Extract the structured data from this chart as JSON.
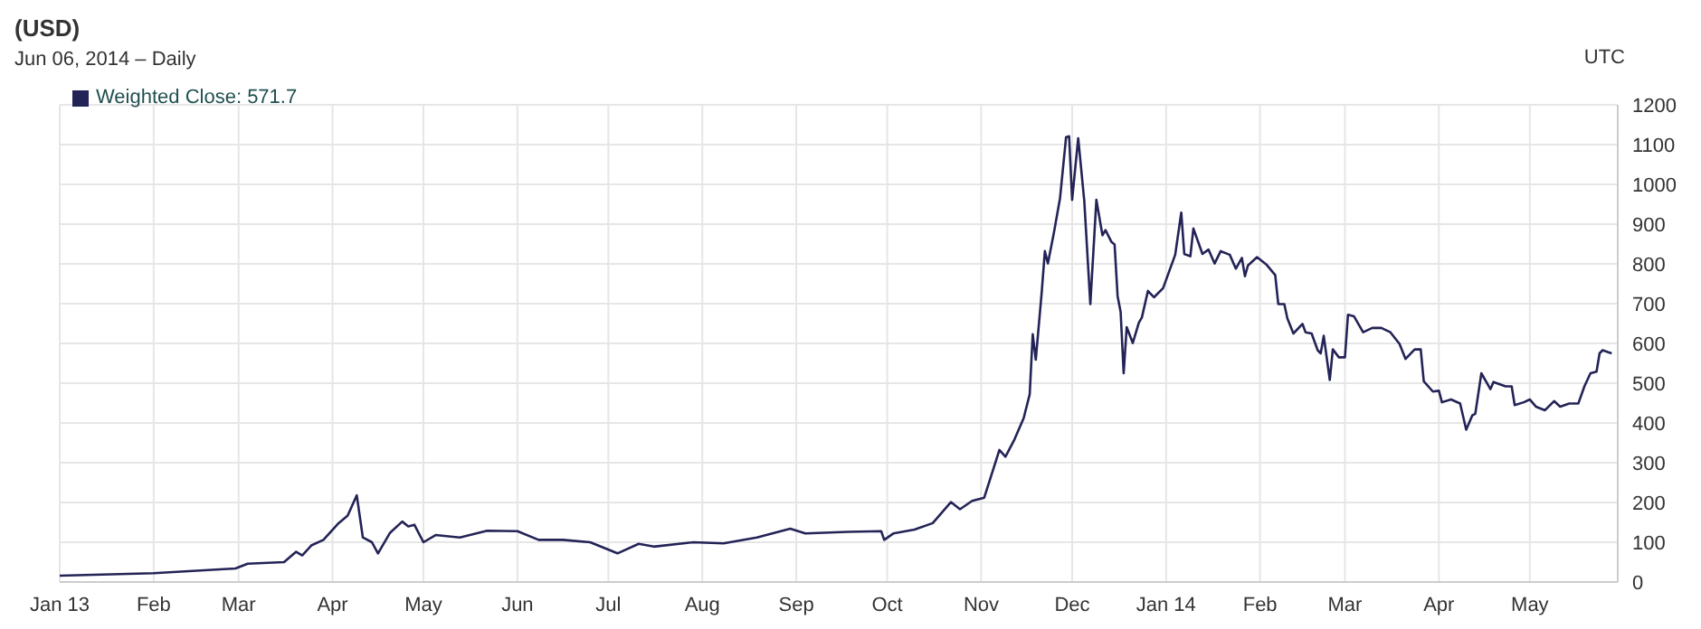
{
  "chart_data": {
    "type": "line",
    "title": "(USD)",
    "subtitle": "Jun 06, 2014 – Daily",
    "annotations": [
      "UTC"
    ],
    "x": [
      "2013-01-01",
      "2013-02-01",
      "2013-02-28",
      "2013-03-04",
      "2013-03-16",
      "2013-03-20",
      "2013-03-22",
      "2013-03-25",
      "2013-03-29",
      "2013-04-03",
      "2013-04-06",
      "2013-04-09",
      "2013-04-11",
      "2013-04-14",
      "2013-04-16",
      "2013-04-20",
      "2013-04-24",
      "2013-04-26",
      "2013-04-28",
      "2013-05-01",
      "2013-05-05",
      "2013-05-13",
      "2013-05-22",
      "2013-06-01",
      "2013-06-08",
      "2013-06-16",
      "2013-06-25",
      "2013-07-04",
      "2013-07-11",
      "2013-07-16",
      "2013-07-29",
      "2013-08-08",
      "2013-08-19",
      "2013-08-30",
      "2013-09-04",
      "2013-09-18",
      "2013-09-29",
      "2013-09-30",
      "2013-10-03",
      "2013-10-10",
      "2013-10-16",
      "2013-10-22",
      "2013-10-25",
      "2013-10-29",
      "2013-11-02",
      "2013-11-07",
      "2013-11-09",
      "2013-11-12",
      "2013-11-15",
      "2013-11-17",
      "2013-11-18",
      "2013-11-19",
      "2013-11-21",
      "2013-11-22",
      "2013-11-23",
      "2013-11-25",
      "2013-11-27",
      "2013-11-29",
      "2013-11-30",
      "2013-12-01",
      "2013-12-02",
      "2013-12-03",
      "2013-12-05",
      "2013-12-07",
      "2013-12-09",
      "2013-12-11",
      "2013-12-12",
      "2013-12-14",
      "2013-12-15",
      "2013-12-16",
      "2013-12-17",
      "2013-12-18",
      "2013-12-19",
      "2013-12-21",
      "2013-12-23",
      "2013-12-24",
      "2013-12-26",
      "2013-12-28",
      "2013-12-31",
      "2014-01-04",
      "2014-01-06",
      "2014-01-07",
      "2014-01-09",
      "2014-01-10",
      "2014-01-13",
      "2014-01-15",
      "2014-01-17",
      "2014-01-19",
      "2014-01-22",
      "2014-01-24",
      "2014-01-26",
      "2014-01-27",
      "2014-01-28",
      "2014-01-31",
      "2014-02-03",
      "2014-02-06",
      "2014-02-07",
      "2014-02-09",
      "2014-02-10",
      "2014-02-12",
      "2014-02-15",
      "2014-02-16",
      "2014-02-18",
      "2014-02-20",
      "2014-02-21",
      "2014-02-22",
      "2014-02-24",
      "2014-02-25",
      "2014-02-27",
      "2014-03-01",
      "2014-03-02",
      "2014-03-04",
      "2014-03-07",
      "2014-03-10",
      "2014-03-13",
      "2014-03-16",
      "2014-03-19",
      "2014-03-21",
      "2014-03-24",
      "2014-03-26",
      "2014-03-27",
      "2014-03-30",
      "2014-04-01",
      "2014-04-02",
      "2014-04-05",
      "2014-04-08",
      "2014-04-10",
      "2014-04-12",
      "2014-04-13",
      "2014-04-15",
      "2014-04-18",
      "2014-04-19",
      "2014-04-23",
      "2014-04-25",
      "2014-04-26",
      "2014-04-29",
      "2014-05-01",
      "2014-05-03",
      "2014-05-06",
      "2014-05-09",
      "2014-05-11",
      "2014-05-14",
      "2014-05-17",
      "2014-05-19",
      "2014-05-21",
      "2014-05-23",
      "2014-05-24",
      "2014-05-25",
      "2014-05-28"
    ],
    "series": [
      {
        "name": "Weighted Close: 571.7",
        "color": "#232357",
        "values": [
          16,
          22,
          34,
          46,
          50,
          76,
          67,
          92,
          106,
          148,
          167,
          218,
          112,
          100,
          72,
          124,
          152,
          140,
          144,
          100,
          118,
          112,
          129,
          128,
          106,
          106,
          100,
          72,
          96,
          89,
          100,
          97,
          112,
          134,
          122,
          126,
          128,
          106,
          122,
          132,
          148,
          201,
          183,
          204,
          212,
          332,
          315,
          359,
          412,
          472,
          623,
          559,
          732,
          832,
          801,
          879,
          965,
          1119,
          1121,
          961,
          1039,
          1116,
          959,
          699,
          961,
          872,
          885,
          855,
          849,
          719,
          679,
          525,
          641,
          601,
          652,
          665,
          732,
          716,
          739,
          823,
          929,
          825,
          819,
          889,
          825,
          836,
          801,
          832,
          823,
          788,
          815,
          769,
          796,
          817,
          799,
          772,
          699,
          699,
          663,
          625,
          649,
          628,
          625,
          583,
          575,
          619,
          508,
          585,
          565,
          565,
          672,
          668,
          628,
          639,
          639,
          628,
          599,
          561,
          585,
          585,
          505,
          479,
          481,
          452,
          459,
          449,
          383,
          419,
          423,
          525,
          485,
          503,
          492,
          492,
          445,
          452,
          459,
          441,
          432,
          455,
          441,
          449,
          449,
          492,
          525,
          529,
          575,
          583,
          575
        ]
      }
    ],
    "xlim": [
      "2013-01-01",
      "2014-05-30"
    ],
    "xticks": [
      {
        "value": "2013-01-01",
        "label": "Jan 13"
      },
      {
        "value": "2013-02-01",
        "label": "Feb"
      },
      {
        "value": "2013-03-01",
        "label": "Mar"
      },
      {
        "value": "2013-04-01",
        "label": "Apr"
      },
      {
        "value": "2013-05-01",
        "label": "May"
      },
      {
        "value": "2013-06-01",
        "label": "Jun"
      },
      {
        "value": "2013-07-01",
        "label": "Jul"
      },
      {
        "value": "2013-08-01",
        "label": "Aug"
      },
      {
        "value": "2013-09-01",
        "label": "Sep"
      },
      {
        "value": "2013-10-01",
        "label": "Oct"
      },
      {
        "value": "2013-11-01",
        "label": "Nov"
      },
      {
        "value": "2013-12-01",
        "label": "Dec"
      },
      {
        "value": "2014-01-01",
        "label": "Jan 14"
      },
      {
        "value": "2014-02-01",
        "label": "Feb"
      },
      {
        "value": "2014-03-01",
        "label": "Mar"
      },
      {
        "value": "2014-04-01",
        "label": "Apr"
      },
      {
        "value": "2014-05-01",
        "label": "May"
      }
    ],
    "ylim": [
      0,
      1200
    ],
    "yticks": [
      0,
      100,
      200,
      300,
      400,
      500,
      600,
      700,
      800,
      900,
      1000,
      1100,
      1200
    ],
    "grid": true,
    "legend": "top left",
    "marker": "none",
    "line_style": "solid"
  }
}
